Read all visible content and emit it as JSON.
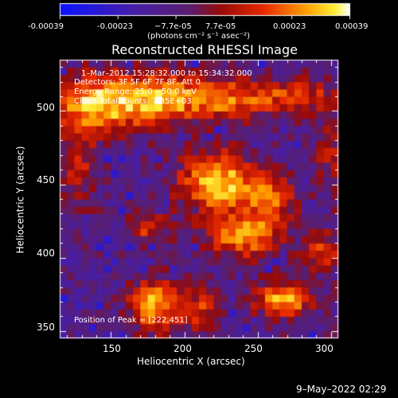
{
  "colorbar": {
    "ticks": [
      "-0.00039",
      "-0.00023",
      "−7.7e-05",
      "7.7e-05",
      "0.00023",
      "0.00039"
    ],
    "units_label": "(photons cm⁻² s⁻¹ asec⁻²)"
  },
  "title": "Reconstructed RHESSI Image",
  "info": {
    "line1": "1–Mar–2012 15:28:32.000 to 15:34:32.000",
    "line2": "Detectors: 3F 5F 6F 7F 8F, Att 0",
    "line3": "Energy Range: 25.0 – 50.0 keV",
    "line4": "Clean    Total counts: 7.85E+03"
  },
  "peak_label": "Position of Peak = [222,451]",
  "footer_date": "9–May–2022 02:29",
  "chart_data": {
    "type": "heatmap",
    "title": "Reconstructed RHESSI Image",
    "xlabel": "Heliocentric X (arcsec)",
    "ylabel": "Heliocentric Y (arcsec)",
    "xlim": [
      115,
      305
    ],
    "ylim": [
      345,
      535
    ],
    "xticks": [
      150,
      200,
      250,
      300
    ],
    "yticks": [
      350,
      400,
      450,
      500
    ],
    "value_range": [
      -0.00039,
      0.00039
    ],
    "peak": [
      222,
      451
    ],
    "sources": [
      {
        "x": 142,
        "y": 505,
        "sx": 22,
        "sy": 14,
        "a": 1.0
      },
      {
        "x": 185,
        "y": 510,
        "sx": 16,
        "sy": 12,
        "a": 0.8
      },
      {
        "x": 225,
        "y": 508,
        "sx": 20,
        "sy": 10,
        "a": 0.7
      },
      {
        "x": 275,
        "y": 510,
        "sx": 22,
        "sy": 9,
        "a": 0.55
      },
      {
        "x": 222,
        "y": 452,
        "sx": 18,
        "sy": 14,
        "a": 1.0
      },
      {
        "x": 258,
        "y": 440,
        "sx": 12,
        "sy": 12,
        "a": 0.65
      },
      {
        "x": 240,
        "y": 415,
        "sx": 18,
        "sy": 10,
        "a": 0.85
      },
      {
        "x": 175,
        "y": 420,
        "sx": 10,
        "sy": 8,
        "a": 0.5
      },
      {
        "x": 180,
        "y": 368,
        "sx": 12,
        "sy": 12,
        "a": 0.9
      },
      {
        "x": 210,
        "y": 365,
        "sx": 10,
        "sy": 9,
        "a": 0.55
      },
      {
        "x": 268,
        "y": 372,
        "sx": 14,
        "sy": 9,
        "a": 0.85
      },
      {
        "x": 295,
        "y": 405,
        "sx": 10,
        "sy": 10,
        "a": 0.5
      },
      {
        "x": 128,
        "y": 460,
        "sx": 10,
        "sy": 18,
        "a": 0.4
      },
      {
        "x": 300,
        "y": 470,
        "sx": 8,
        "sy": 20,
        "a": 0.35
      }
    ]
  }
}
